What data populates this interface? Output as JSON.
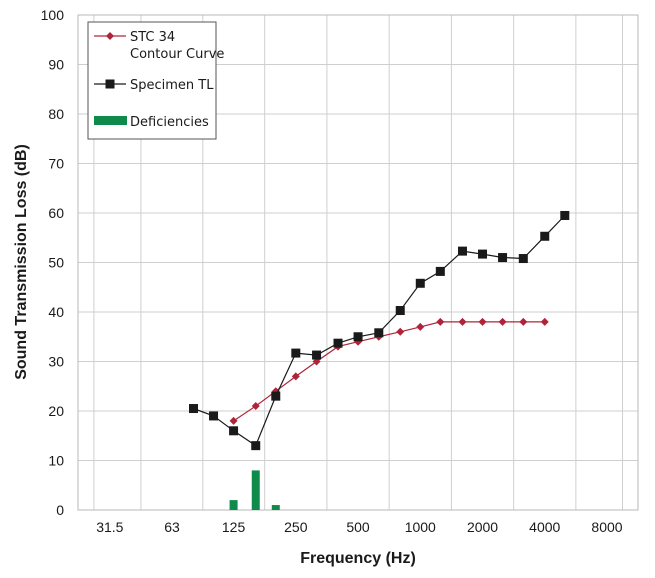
{
  "chart_data": {
    "type": "line",
    "xlabel": "Frequency (Hz)",
    "ylabel": "Sound Transmission Loss (dB)",
    "x_scale": "log2",
    "xlim": [
      22.1,
      11300
    ],
    "ylim": [
      0,
      100
    ],
    "y_ticks": [
      0,
      10,
      20,
      30,
      40,
      50,
      60,
      70,
      80,
      90,
      100
    ],
    "x_ticks": [
      31.5,
      63,
      125,
      250,
      500,
      1000,
      2000,
      4000,
      8000
    ],
    "x_tick_labels": [
      "31.5",
      "63",
      "125",
      "250",
      "500",
      "1000",
      "2000",
      "4000",
      "8000"
    ],
    "grid": true,
    "legend_position": "top-left",
    "series": [
      {
        "name": "STC 34 Contour Curve",
        "legend_lines": [
          "STC 34",
          "Contour Curve"
        ],
        "color": "#b0243a",
        "marker": "diamond",
        "x": [
          125,
          160,
          200,
          250,
          315,
          400,
          500,
          630,
          800,
          1000,
          1250,
          1600,
          2000,
          2500,
          3150,
          4000
        ],
        "values": [
          18,
          21,
          24,
          27,
          30,
          33,
          34,
          35,
          36,
          37,
          38,
          38,
          38,
          38,
          38,
          38
        ]
      },
      {
        "name": "Specimen TL",
        "legend_lines": [
          "Specimen TL"
        ],
        "color": "#1a1a1a",
        "marker": "square",
        "x": [
          80,
          100,
          125,
          160,
          200,
          250,
          315,
          400,
          500,
          630,
          800,
          1000,
          1250,
          1600,
          2000,
          2500,
          3150,
          4000,
          5000
        ],
        "values": [
          20.5,
          19,
          16,
          13,
          23,
          31.7,
          31.3,
          33.7,
          35,
          35.8,
          40.3,
          45.8,
          48.2,
          52.3,
          51.7,
          51,
          50.8,
          55.3,
          59.5
        ]
      },
      {
        "name": "Deficiencies",
        "legend_lines": [
          "Deficiencies"
        ],
        "type": "bar",
        "color": "#0e8a4a",
        "x": [
          125,
          160,
          200
        ],
        "values": [
          2,
          8,
          1
        ]
      }
    ]
  }
}
